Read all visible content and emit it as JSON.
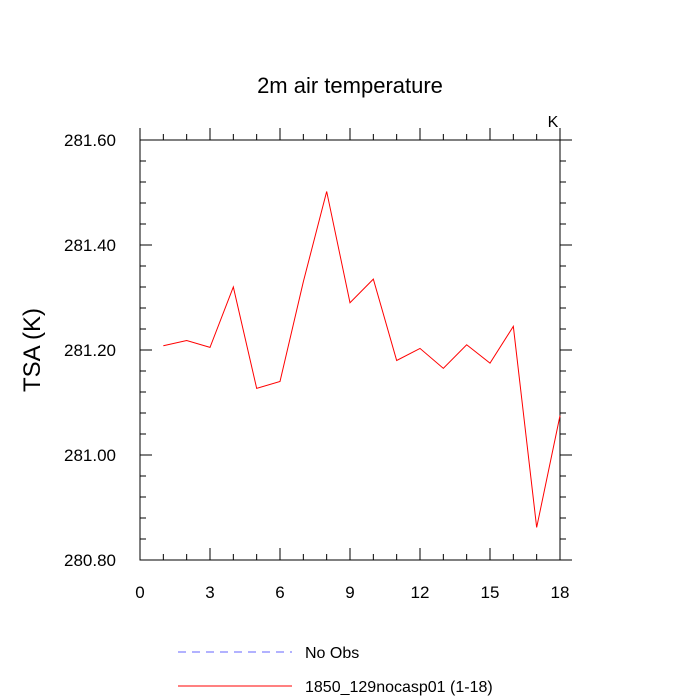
{
  "chart_data": {
    "type": "line",
    "title": "2m air temperature",
    "units_label": "K",
    "ylabel": "TSA  (K)",
    "xlabel": "",
    "xlim": [
      0,
      18
    ],
    "ylim": [
      280.8,
      281.6
    ],
    "x_ticks": [
      0,
      3,
      6,
      9,
      12,
      15,
      18
    ],
    "y_ticks": [
      280.8,
      281.0,
      281.2,
      281.4,
      281.6
    ],
    "x_tick_labels": [
      "0",
      "3",
      "6",
      "9",
      "12",
      "15",
      "18"
    ],
    "y_tick_labels": [
      "280.80",
      "281.00",
      "281.20",
      "281.40",
      "281.60"
    ],
    "grid": false,
    "series": [
      {
        "name": "1850_129nocasp01 (1-18)",
        "color": "#ff0000",
        "x": [
          1,
          2,
          3,
          4,
          5,
          6,
          7,
          8,
          9,
          10,
          11,
          12,
          13,
          14,
          15,
          16,
          17,
          18
        ],
        "values": [
          281.208,
          281.218,
          281.205,
          281.32,
          281.127,
          281.14,
          281.33,
          281.502,
          281.29,
          281.335,
          281.18,
          281.203,
          281.165,
          281.21,
          281.175,
          281.245,
          280.862,
          281.075
        ]
      }
    ],
    "legend": {
      "placement": "bottom-center",
      "entries": [
        {
          "label": "No Obs",
          "color": "#6666ff",
          "style": "dashed"
        },
        {
          "label": "1850_129nocasp01 (1-18)",
          "color": "#ff0000",
          "style": "solid"
        }
      ]
    }
  }
}
